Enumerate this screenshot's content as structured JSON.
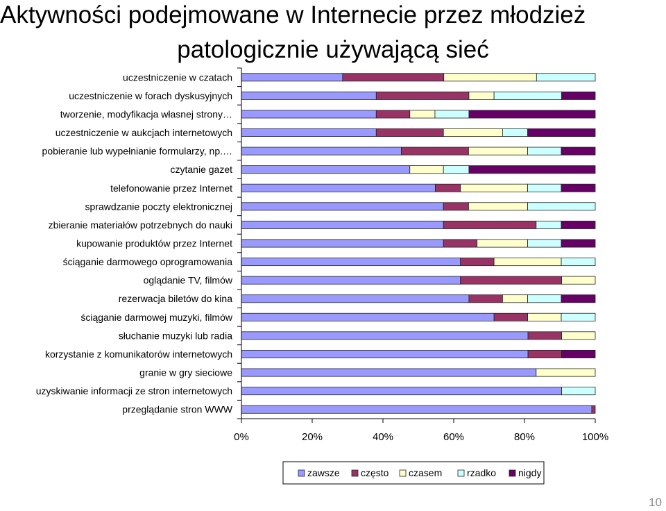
{
  "slide": {
    "title_line1": "Aktywności podejmowane w Internecie przez młodzież",
    "title_line2": "patologicznie używającą  sieć",
    "page_number": "10"
  },
  "colors": {
    "zawsze": "#9999ff",
    "często": "#993366",
    "czasem": "#ffffcc",
    "rzadko": "#ccffff",
    "nigdy": "#660066",
    "bar_outline": "#222222",
    "axis": "#000000"
  },
  "chart_data": {
    "type": "bar",
    "orientation": "horizontal",
    "stacked": "percent",
    "title": "",
    "xlabel": "",
    "ylabel": "",
    "xlim": [
      0,
      100
    ],
    "x_ticks": [
      "0%",
      "20%",
      "40%",
      "60%",
      "80%",
      "100%"
    ],
    "legend_position": "bottom",
    "grid": false,
    "categories": [
      "uczestniczenie w czatach",
      "uczestniczenie w forach dyskusyjnych",
      "tworzenie, modyfikacja własnej strony…",
      "uczestniczenie w aukcjach internetowych",
      "pobieranie lub wypełnianie formularzy, np.…",
      "czytanie gazet",
      "telefonowanie przez Internet",
      "sprawdzanie poczty elektronicznej",
      "zbieranie materiałów potrzebnych do nauki",
      "kupowanie produktów przez Internet",
      "ściąganie darmowego oprogramowania",
      "oglądanie TV, filmów",
      "rezerwacja biletów do kina",
      "ściąganie darmowej muzyki, filmów",
      "słuchanie muzyki lub radia",
      "korzystanie z komunikatorów internetowych",
      "granie w gry sieciowe",
      "uzyskiwanie informacji ze stron internetowych",
      "przeglądanie stron WWW"
    ],
    "series": [
      {
        "name": "zawsze",
        "values": [
          28.6,
          38.1,
          38.1,
          38.1,
          45.2,
          47.6,
          54.8,
          57.1,
          57.1,
          57.1,
          61.9,
          61.9,
          64.3,
          71.4,
          81.0,
          81.0,
          83.3,
          90.5,
          99.0
        ]
      },
      {
        "name": "często",
        "values": [
          28.6,
          26.2,
          9.5,
          19.0,
          19.0,
          0.0,
          7.1,
          7.1,
          26.2,
          9.5,
          9.5,
          28.6,
          9.5,
          9.5,
          9.5,
          9.5,
          0.0,
          0.0,
          1.0
        ]
      },
      {
        "name": "czasem",
        "values": [
          26.2,
          7.1,
          7.1,
          16.7,
          16.7,
          9.5,
          19.0,
          16.7,
          0.0,
          14.3,
          19.0,
          9.5,
          7.1,
          9.5,
          9.5,
          0.0,
          16.7,
          0.0,
          0.0
        ]
      },
      {
        "name": "rzadko",
        "values": [
          16.6,
          19.1,
          9.6,
          7.1,
          9.5,
          7.2,
          9.5,
          19.1,
          7.1,
          9.5,
          9.6,
          0.0,
          9.5,
          9.6,
          0.0,
          0.0,
          0.0,
          9.5,
          0.0
        ]
      },
      {
        "name": "nigdy",
        "values": [
          0.0,
          9.5,
          35.7,
          19.1,
          9.6,
          35.7,
          9.6,
          0.0,
          9.6,
          9.6,
          0.0,
          0.0,
          9.6,
          0.0,
          0.0,
          9.5,
          0.0,
          0.0,
          0.0
        ]
      }
    ]
  }
}
